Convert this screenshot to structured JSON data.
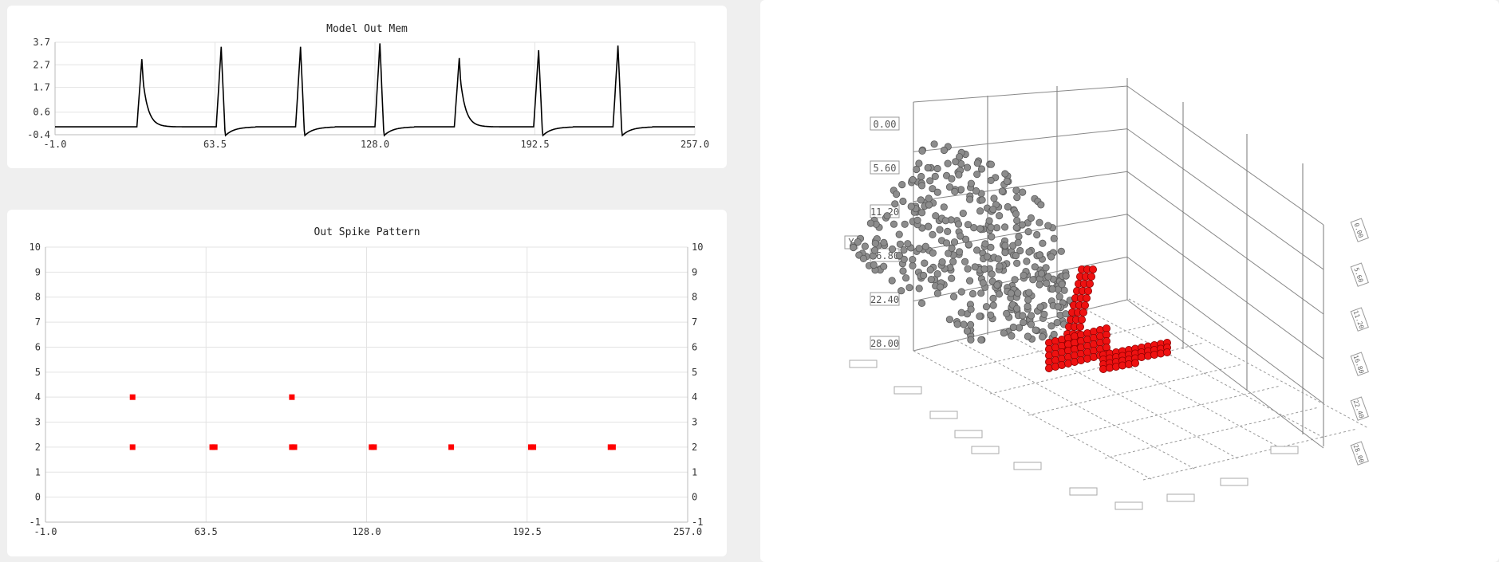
{
  "chart_data": [
    {
      "type": "line",
      "title": "Model Out Mem",
      "x_ticks": [
        "-1.0",
        "63.5",
        "128.0",
        "192.5",
        "257.0"
      ],
      "y_ticks": [
        "-0.4",
        "0.6",
        "1.7",
        "2.7",
        "3.7"
      ],
      "xlim": [
        -1.0,
        257.0
      ],
      "ylim": [
        -0.4,
        3.7
      ],
      "grid": true,
      "rest_value": -0.05,
      "spikes": [
        {
          "t": 34,
          "peak": 2.95,
          "decay": "slow"
        },
        {
          "t": 66,
          "peak": 3.5,
          "decay": "undershoot"
        },
        {
          "t": 98,
          "peak": 3.5,
          "decay": "undershoot"
        },
        {
          "t": 130,
          "peak": 3.65,
          "decay": "undershoot"
        },
        {
          "t": 162,
          "peak": 3.0,
          "decay": "slow"
        },
        {
          "t": 194,
          "peak": 3.35,
          "decay": "undershoot"
        },
        {
          "t": 226,
          "peak": 3.55,
          "decay": "undershoot"
        }
      ]
    },
    {
      "type": "scatter",
      "title": "Out Spike Pattern",
      "x_ticks": [
        "-1.0",
        "63.5",
        "128.0",
        "192.5",
        "257.0"
      ],
      "y_ticks": [
        "-1",
        "0",
        "1",
        "2",
        "3",
        "4",
        "5",
        "6",
        "7",
        "8",
        "9",
        "10"
      ],
      "xlim": [
        -1.0,
        257.0
      ],
      "ylim": [
        -1,
        10
      ],
      "grid": true,
      "marker_color": "#ff0000",
      "points": [
        {
          "x": 34,
          "y": 4
        },
        {
          "x": 34,
          "y": 2
        },
        {
          "x": 66,
          "y": 2
        },
        {
          "x": 67,
          "y": 2
        },
        {
          "x": 98,
          "y": 4
        },
        {
          "x": 98,
          "y": 2
        },
        {
          "x": 99,
          "y": 2
        },
        {
          "x": 130,
          "y": 2
        },
        {
          "x": 131,
          "y": 2
        },
        {
          "x": 162,
          "y": 2
        },
        {
          "x": 194,
          "y": 2
        },
        {
          "x": 195,
          "y": 2
        },
        {
          "x": 226,
          "y": 2
        },
        {
          "x": 227,
          "y": 2
        }
      ]
    },
    {
      "type": "scatter",
      "dimensions": 3,
      "y_axis_label": "Y",
      "y_ticks": [
        "0.00",
        "5.60",
        "11.20",
        "16.80",
        "22.40",
        "28.00"
      ],
      "right_ticks": [
        "0.00",
        "5.60",
        "11.20",
        "16.80",
        "22.40",
        "28.00"
      ],
      "series": [
        {
          "name": "",
          "color": "#8c8c8c",
          "count": 420
        },
        {
          "name": "",
          "color": "#ee1111",
          "count": 125
        }
      ]
    }
  ]
}
